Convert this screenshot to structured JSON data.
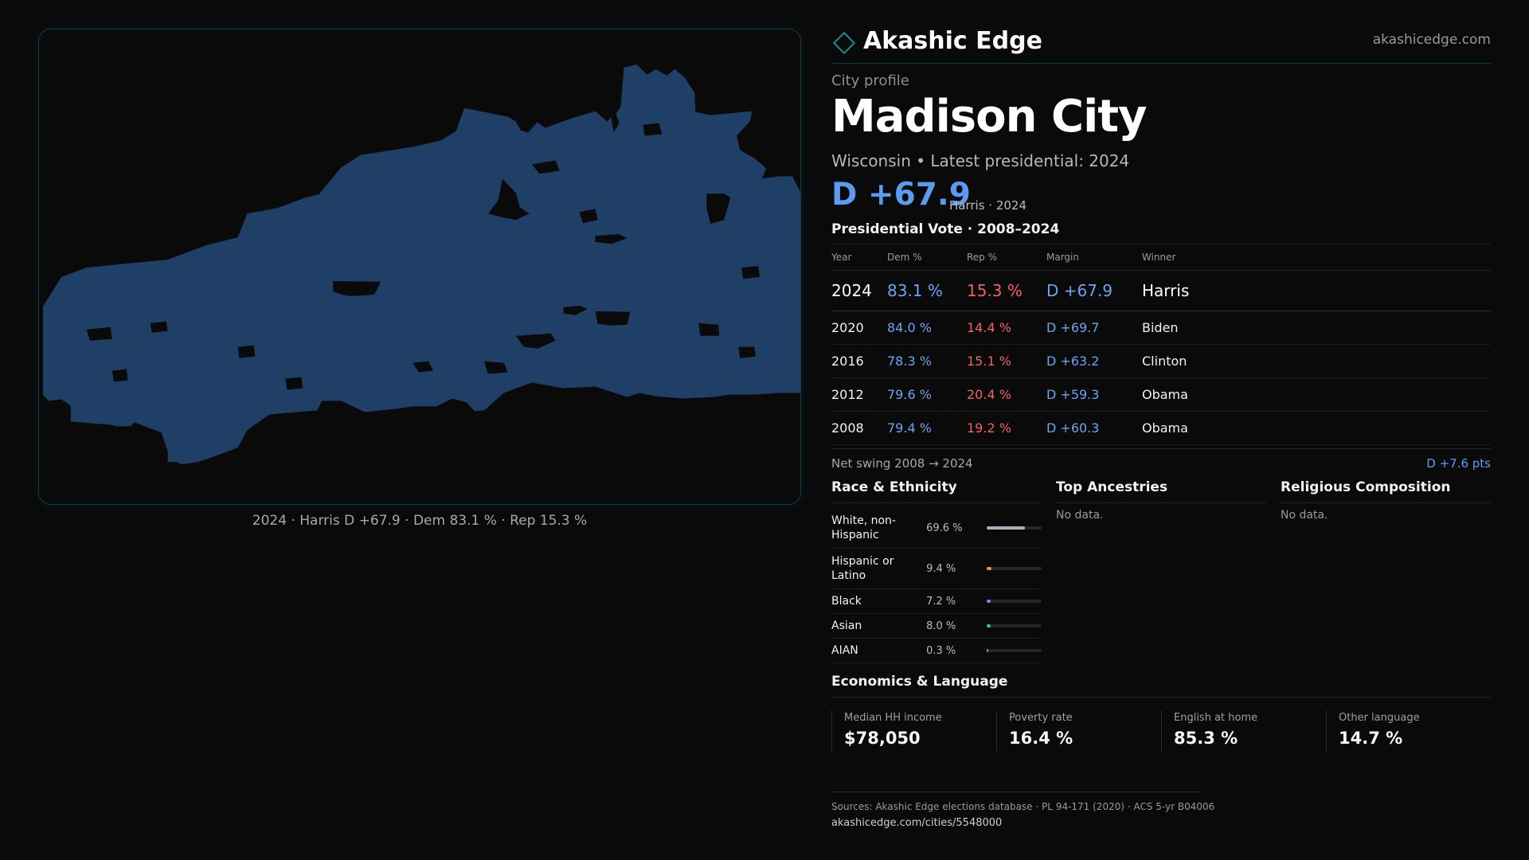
{
  "brand": {
    "name": "Akashic Edge",
    "site": "akashicedge.com"
  },
  "profile": {
    "kicker": "City profile",
    "title": "Madison City",
    "subtitle": "Wisconsin • Latest presidential: 2024",
    "headline_margin": "D +67.9",
    "headline_note": "Harris · 2024"
  },
  "map": {
    "caption": "2024 · Harris D +67.9 · Dem 83.1 % · Rep 15.3 %",
    "fill_color": "#1f3f66"
  },
  "vote": {
    "heading": "Presidential Vote · 2008–2024",
    "columns": [
      "Year",
      "Dem %",
      "Rep %",
      "Margin",
      "Winner"
    ],
    "rows": [
      {
        "year": "2024",
        "dem": "83.1 %",
        "rep": "15.3 %",
        "margin": "D +67.9",
        "winner": "Harris"
      },
      {
        "year": "2020",
        "dem": "84.0 %",
        "rep": "14.4 %",
        "margin": "D +69.7",
        "winner": "Biden"
      },
      {
        "year": "2016",
        "dem": "78.3 %",
        "rep": "15.1 %",
        "margin": "D +63.2",
        "winner": "Clinton"
      },
      {
        "year": "2012",
        "dem": "79.6 %",
        "rep": "20.4 %",
        "margin": "D +59.3",
        "winner": "Obama"
      },
      {
        "year": "2008",
        "dem": "79.4 %",
        "rep": "19.2 %",
        "margin": "D +60.3",
        "winner": "Obama"
      }
    ],
    "swing_label": "Net swing 2008 → 2024",
    "swing_value": "D +7.6 pts"
  },
  "race": {
    "heading": "Race & Ethnicity",
    "rows": [
      {
        "label": "White, non-Hispanic",
        "value": "69.6 %",
        "share": 0.696,
        "color": "#a9b0bd"
      },
      {
        "label": "Hispanic or Latino",
        "value": "9.4 %",
        "share": 0.094,
        "color": "#e0a030"
      },
      {
        "label": "Black",
        "value": "7.2 %",
        "share": 0.072,
        "color": "#8a7ae8"
      },
      {
        "label": "Asian",
        "value": "8.0 %",
        "share": 0.08,
        "color": "#2fc49a"
      },
      {
        "label": "AIAN",
        "value": "0.3 %",
        "share": 0.003,
        "color": "#e07040"
      }
    ]
  },
  "ancestries": {
    "heading": "Top Ancestries",
    "empty": "No data."
  },
  "religion": {
    "heading": "Religious Composition",
    "empty": "No data."
  },
  "economics": {
    "heading": "Economics & Language",
    "cells": [
      {
        "label": "Median HH income",
        "value": "$78,050"
      },
      {
        "label": "Poverty rate",
        "value": "16.4 %"
      },
      {
        "label": "English at home",
        "value": "85.3 %"
      },
      {
        "label": "Other language",
        "value": "14.7 %"
      }
    ]
  },
  "footer": {
    "sources": "Sources: Akashic Edge elections database · PL 94-171 (2020) · ACS 5-yr B04006",
    "url": "akashicedge.com/cities/5548000"
  }
}
